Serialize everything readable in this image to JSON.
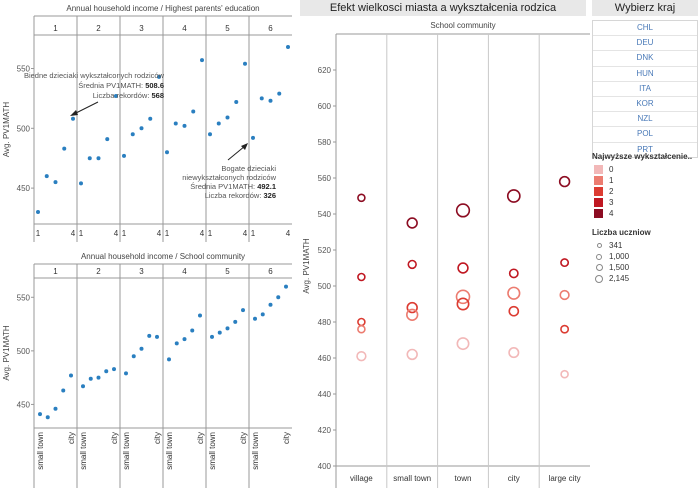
{
  "header": {
    "main_title": "Efekt wielkosci miasta a wykształcenia rodzica"
  },
  "country_selector": {
    "title": "Wybierz kraj",
    "items": [
      "CHL",
      "DEU",
      "DNK",
      "HUN",
      "ITA",
      "KOR",
      "NZL",
      "POL",
      "PRT"
    ]
  },
  "legend_edu": {
    "title": "Najwyższe wykształcenie..",
    "items": [
      "0",
      "1",
      "2",
      "3",
      "4"
    ],
    "colors": [
      "#f2b8b8",
      "#ec7c70",
      "#dc3c32",
      "#c01822",
      "#8c0c22"
    ]
  },
  "legend_count": {
    "title": "Liczba uczniow",
    "items": [
      "341",
      "1,000",
      "1,500",
      "2,145"
    ]
  },
  "chart_data": [
    {
      "type": "scatter",
      "title": "Annual household income  /  Highest parents' education",
      "panels": [
        "1",
        "2",
        "3",
        "4",
        "5",
        "6"
      ],
      "x_ticks": [
        "1",
        "4"
      ],
      "ylabel": "Avg. PV1MATH",
      "ylim": [
        420,
        578
      ],
      "y_ticks": [
        450,
        500,
        550
      ],
      "color": "#2a7fc0",
      "series": [
        {
          "panel": "1",
          "x": [
            0,
            1,
            2,
            3,
            4
          ],
          "y": [
            430,
            460,
            455,
            483,
            508
          ]
        },
        {
          "panel": "2",
          "x": [
            0,
            1,
            2,
            3,
            4
          ],
          "y": [
            454,
            475,
            475,
            491,
            527
          ]
        },
        {
          "panel": "3",
          "x": [
            0,
            1,
            2,
            3,
            4
          ],
          "y": [
            477,
            495,
            500,
            508,
            543
          ]
        },
        {
          "panel": "4",
          "x": [
            0,
            1,
            2,
            3,
            4
          ],
          "y": [
            480,
            504,
            502,
            514,
            557
          ]
        },
        {
          "panel": "5",
          "x": [
            0,
            1,
            2,
            3,
            4
          ],
          "y": [
            495,
            504,
            509,
            522,
            554
          ]
        },
        {
          "panel": "6",
          "x": [
            0,
            1,
            2,
            3,
            4
          ],
          "y": [
            492,
            525,
            523,
            529,
            568
          ]
        }
      ],
      "annotations": [
        {
          "lines": [
            "Biedne dzieciaki wykształconych rodziców",
            "Średnia PV1MATH: ",
            "Liczba rekordów: "
          ],
          "values": [
            "",
            "508.6",
            "568"
          ]
        },
        {
          "lines": [
            "Bogate dzieciaki",
            "niewykształconych rodziców",
            "Średnia PV1MATH: ",
            "Liczba rekordów: "
          ],
          "values": [
            "",
            "",
            "492.1",
            "326"
          ]
        }
      ]
    },
    {
      "type": "scatter",
      "title": "Annual household income  /  School community",
      "panels": [
        "1",
        "2",
        "3",
        "4",
        "5",
        "6"
      ],
      "x_ticks": [
        "small town",
        "city"
      ],
      "ylabel": "Avg. PV1MATH",
      "ylim": [
        428,
        568
      ],
      "y_ticks": [
        450,
        500,
        550
      ],
      "color": "#2a7fc0",
      "series": [
        {
          "panel": "1",
          "x": [
            0,
            1,
            2,
            3,
            4
          ],
          "y": [
            441,
            438,
            446,
            463,
            477
          ]
        },
        {
          "panel": "2",
          "x": [
            0,
            1,
            2,
            3,
            4
          ],
          "y": [
            467,
            474,
            475,
            481,
            483
          ]
        },
        {
          "panel": "3",
          "x": [
            0,
            1,
            2,
            3,
            4
          ],
          "y": [
            479,
            495,
            502,
            514,
            513
          ]
        },
        {
          "panel": "4",
          "x": [
            0,
            1,
            2,
            3,
            4
          ],
          "y": [
            492,
            507,
            511,
            519,
            533
          ]
        },
        {
          "panel": "5",
          "x": [
            0,
            1,
            2,
            3,
            4
          ],
          "y": [
            513,
            517,
            521,
            527,
            538
          ]
        },
        {
          "panel": "6",
          "x": [
            0,
            1,
            2,
            3,
            4
          ],
          "y": [
            530,
            534,
            543,
            550,
            560
          ]
        }
      ]
    },
    {
      "type": "scatter",
      "title": "School community",
      "categories": [
        "village",
        "small town",
        "town",
        "city",
        "large city"
      ],
      "ylabel": "Avg. PV1MATH",
      "ylim": [
        400,
        630
      ],
      "y_ticks": [
        400,
        420,
        440,
        460,
        480,
        500,
        520,
        540,
        560,
        580,
        600,
        620
      ],
      "points": [
        {
          "cat": 0,
          "y": 549,
          "edu": 4,
          "n": 341
        },
        {
          "cat": 0,
          "y": 505,
          "edu": 3,
          "n": 341
        },
        {
          "cat": 0,
          "y": 480,
          "edu": 2,
          "n": 341
        },
        {
          "cat": 0,
          "y": 476,
          "edu": 1,
          "n": 341
        },
        {
          "cat": 0,
          "y": 461,
          "edu": 0,
          "n": 700
        },
        {
          "cat": 1,
          "y": 535,
          "edu": 4,
          "n": 1000
        },
        {
          "cat": 1,
          "y": 512,
          "edu": 3,
          "n": 500
        },
        {
          "cat": 1,
          "y": 488,
          "edu": 2,
          "n": 1000
        },
        {
          "cat": 1,
          "y": 484,
          "edu": 1,
          "n": 1300
        },
        {
          "cat": 1,
          "y": 462,
          "edu": 0,
          "n": 1000
        },
        {
          "cat": 2,
          "y": 542,
          "edu": 4,
          "n": 2000
        },
        {
          "cat": 2,
          "y": 510,
          "edu": 3,
          "n": 1000
        },
        {
          "cat": 2,
          "y": 494,
          "edu": 1,
          "n": 2145
        },
        {
          "cat": 2,
          "y": 490,
          "edu": 2,
          "n": 1500
        },
        {
          "cat": 2,
          "y": 468,
          "edu": 0,
          "n": 1500
        },
        {
          "cat": 3,
          "y": 550,
          "edu": 4,
          "n": 1800
        },
        {
          "cat": 3,
          "y": 507,
          "edu": 3,
          "n": 600
        },
        {
          "cat": 3,
          "y": 496,
          "edu": 1,
          "n": 1600
        },
        {
          "cat": 3,
          "y": 486,
          "edu": 2,
          "n": 800
        },
        {
          "cat": 3,
          "y": 463,
          "edu": 0,
          "n": 900
        },
        {
          "cat": 4,
          "y": 558,
          "edu": 4,
          "n": 1000
        },
        {
          "cat": 4,
          "y": 513,
          "edu": 3,
          "n": 400
        },
        {
          "cat": 4,
          "y": 495,
          "edu": 1,
          "n": 700
        },
        {
          "cat": 4,
          "y": 476,
          "edu": 2,
          "n": 400
        },
        {
          "cat": 4,
          "y": 451,
          "edu": 0,
          "n": 341
        }
      ]
    }
  ]
}
